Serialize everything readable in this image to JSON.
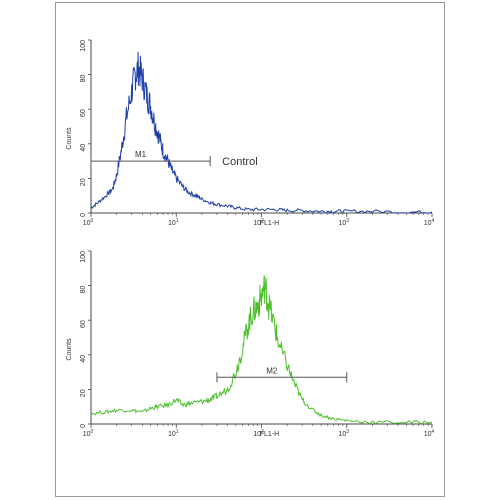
{
  "chart_data": [
    {
      "type": "line",
      "xscale": "log",
      "xlim": [
        1,
        10000
      ],
      "ylim": [
        0,
        100
      ],
      "ylabel": "Counts",
      "xlabel": "FL1-H",
      "yticks": [
        "0",
        "20",
        "40",
        "60",
        "80",
        "100"
      ],
      "xticks": [
        {
          "base": "10",
          "exp": "0"
        },
        {
          "base": "10",
          "exp": "1"
        },
        {
          "base": "10",
          "exp": "2"
        },
        {
          "base": "10",
          "exp": "3"
        },
        {
          "base": "10",
          "exp": "4"
        }
      ],
      "color": "#1f3fa8",
      "series": [
        {
          "x": [
            1,
            1.2,
            1.5,
            1.8,
            2,
            2.3,
            2.6,
            3,
            3.3,
            3.6,
            4,
            4.5,
            5,
            5.6,
            6.3,
            7,
            8,
            9,
            10,
            12,
            14,
            17,
            20,
            25,
            30,
            40,
            50,
            70,
            100,
            150,
            200,
            300,
            500,
            700,
            1000,
            2000,
            5000,
            10000
          ],
          "y": [
            3,
            6,
            10,
            14,
            22,
            38,
            55,
            70,
            80,
            84,
            78,
            68,
            62,
            52,
            44,
            36,
            30,
            24,
            20,
            15,
            12,
            10,
            8,
            6,
            5,
            4,
            3,
            2,
            2,
            2,
            1.5,
            1.5,
            1,
            1,
            1,
            1,
            0.5,
            0.5
          ]
        }
      ],
      "markers": [
        {
          "label": "M1",
          "x_start": 1,
          "x_end": 25,
          "y": 30
        }
      ],
      "annotation": "Control"
    },
    {
      "type": "line",
      "xscale": "log",
      "xlim": [
        1,
        10000
      ],
      "ylim": [
        0,
        100
      ],
      "ylabel": "Counts",
      "xlabel": "FL1-H",
      "yticks": [
        "0",
        "20",
        "40",
        "60",
        "80",
        "100"
      ],
      "xticks": [
        {
          "base": "10",
          "exp": "0"
        },
        {
          "base": "10",
          "exp": "1"
        },
        {
          "base": "10",
          "exp": "2"
        },
        {
          "base": "10",
          "exp": "3"
        },
        {
          "base": "10",
          "exp": "4"
        }
      ],
      "color": "#4cbf2a",
      "series": [
        {
          "x": [
            1,
            1.5,
            2,
            3,
            4,
            5,
            6,
            8,
            10,
            12,
            15,
            20,
            25,
            30,
            40,
            50,
            60,
            70,
            80,
            90,
            100,
            110,
            120,
            140,
            160,
            200,
            250,
            300,
            400,
            500,
            700,
            1000,
            2000,
            5000,
            10000
          ],
          "y": [
            6,
            7,
            8,
            8,
            7,
            9,
            10,
            11,
            14,
            11,
            12,
            13,
            14,
            16,
            20,
            30,
            44,
            58,
            65,
            68,
            74,
            80,
            70,
            58,
            46,
            34,
            22,
            14,
            8,
            5,
            3,
            2,
            1,
            1,
            1
          ]
        }
      ],
      "markers": [
        {
          "label": "M2",
          "x_start": 30,
          "x_end": 1000,
          "y": 27
        }
      ]
    }
  ]
}
